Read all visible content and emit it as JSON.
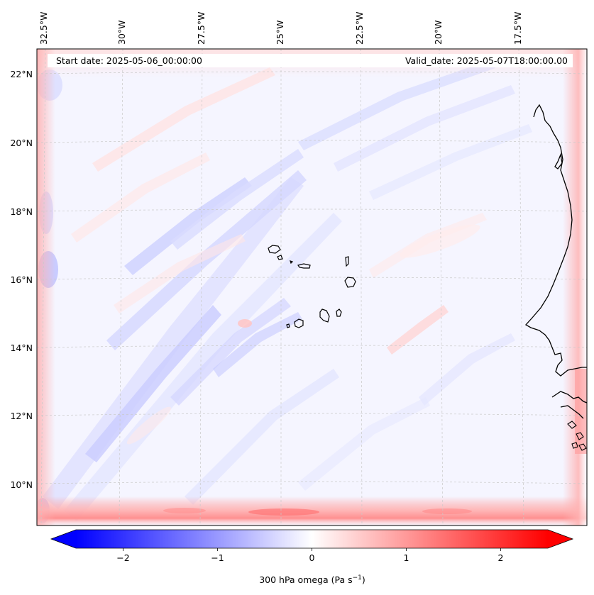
{
  "map": {
    "start_date_label": "Start date: 2025-05-06_00:00:00",
    "valid_date_label": "Valid_date: 2025-05-07T18:00:00.00",
    "longitude_labels": [
      "32.5°W",
      "30°W",
      "27.5°W",
      "25°W",
      "22.5°W",
      "20°W",
      "17.5°W"
    ],
    "latitude_labels": [
      "22°N",
      "20°N",
      "18°N",
      "16°N",
      "14°N",
      "12°N",
      "10°N"
    ],
    "field": "300 hPa omega",
    "region": "Cabo Verde and West African coast"
  },
  "colorbar": {
    "title_main": "300 hPa omega (Pa s",
    "title_exp": "−1",
    "title_close": ")",
    "tick_labels": [
      "−2",
      "−1",
      "0",
      "1",
      "2"
    ],
    "tick_values": [
      -2,
      -1,
      0,
      1,
      2
    ],
    "range": [
      -2.5,
      2.5
    ],
    "color_low": "#0000ff",
    "color_mid": "#ffffff",
    "color_high": "#ff0000"
  }
}
